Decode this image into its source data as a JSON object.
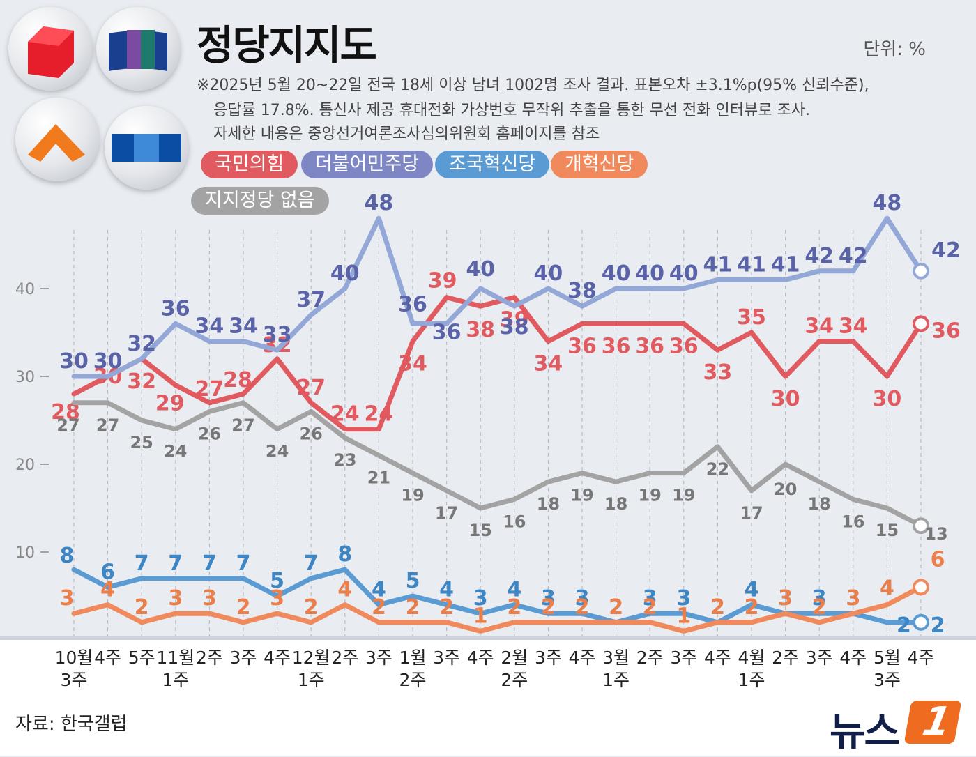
{
  "header": {
    "title": "정당지지도",
    "unit": "단위: %",
    "notes": [
      "※2025년 5월 20~22일 전국 18세 이상 남녀 1002명 조사 결과. 표본오차 ±3.1%p(95% 신뢰수준),",
      "응답률 17.8%. 통신사 제공 휴대전화 가상번호 무작위 추출을 통한 무선 전화 인터뷰로 조사.",
      "자세한 내용은 중앙선거여론조사심의위원회 홈페이지를 참조"
    ]
  },
  "logos": [
    {
      "icon": "ppp-party-logo-icon",
      "color": "#e61e2b"
    },
    {
      "icon": "democratic-party-logo-icon",
      "color": "#1b3f8f"
    },
    {
      "icon": "reform-party-logo-icon",
      "color": "#f07a1c"
    },
    {
      "icon": "rebuilding-korea-party-logo-icon",
      "color": "#0a4ea3"
    }
  ],
  "source": "자료: 한국갤럽",
  "brand": {
    "text": "뉴스",
    "mark": "1"
  },
  "chart_data": {
    "type": "line",
    "ylim": [
      0,
      50
    ],
    "yticks": [
      10,
      20,
      30,
      40
    ],
    "x": [
      "10월 3주",
      "4주",
      "5주",
      "11월 1주",
      "2주",
      "3주",
      "4주",
      "12월 1주",
      "2주",
      "3주",
      "1월 2주",
      "3주",
      "4주",
      "2월 2주",
      "3주",
      "4주",
      "3월 1주",
      "2주",
      "3주",
      "4주",
      "4월 1주",
      "2주",
      "3주",
      "4주",
      "5월 3주",
      "4주"
    ],
    "x_labels": [
      [
        "10월",
        "3주"
      ],
      [
        "4주"
      ],
      [
        "5주"
      ],
      [
        "11월",
        "1주"
      ],
      [
        "2주"
      ],
      [
        "3주"
      ],
      [
        "4주"
      ],
      [
        "12월",
        "1주"
      ],
      [
        "2주"
      ],
      [
        "3주"
      ],
      [
        "1월",
        "2주"
      ],
      [
        "3주"
      ],
      [
        "4주"
      ],
      [
        "2월",
        "2주"
      ],
      [
        "3주"
      ],
      [
        "4주"
      ],
      [
        "3월",
        "1주"
      ],
      [
        "2주"
      ],
      [
        "3주"
      ],
      [
        "4주"
      ],
      [
        "4월",
        "1주"
      ],
      [
        "2주"
      ],
      [
        "3주"
      ],
      [
        "4주"
      ],
      [
        "5월",
        "3주"
      ],
      [
        "4주"
      ]
    ],
    "series": [
      {
        "name": "국민의힘",
        "color": "#e05a5f",
        "values": [
          28,
          30,
          32,
          29,
          27,
          28,
          32,
          27,
          24,
          24,
          34,
          39,
          38,
          39,
          34,
          36,
          36,
          36,
          36,
          33,
          35,
          30,
          34,
          34,
          30,
          36
        ]
      },
      {
        "name": "더불어민주당",
        "color": "#94a8d8",
        "label_color": "#5a63a8",
        "values": [
          30,
          30,
          32,
          36,
          34,
          34,
          33,
          37,
          40,
          48,
          36,
          36,
          40,
          38,
          40,
          38,
          40,
          40,
          40,
          41,
          41,
          41,
          42,
          42,
          48,
          42
        ]
      },
      {
        "name": "조국혁신당",
        "color": "#5b9bd3",
        "label_color": "#3d86c6",
        "values": [
          8,
          6,
          7,
          7,
          7,
          7,
          5,
          7,
          8,
          4,
          5,
          4,
          3,
          4,
          3,
          3,
          2,
          3,
          3,
          2,
          4,
          3,
          3,
          3,
          2,
          2
        ]
      },
      {
        "name": "개혁신당",
        "color": "#f08a5d",
        "label_color": "#ec7e4a",
        "values": [
          3,
          4,
          2,
          3,
          3,
          2,
          3,
          2,
          4,
          2,
          2,
          2,
          1,
          2,
          2,
          2,
          2,
          2,
          1,
          2,
          2,
          3,
          2,
          3,
          4,
          6
        ]
      },
      {
        "name": "지지정당 없음",
        "color": "#a3a3a3",
        "label_color": "#777777",
        "values": [
          27,
          27,
          25,
          24,
          26,
          27,
          24,
          26,
          23,
          21,
          19,
          17,
          15,
          16,
          18,
          19,
          18,
          19,
          19,
          22,
          17,
          20,
          18,
          16,
          15,
          13
        ]
      }
    ]
  }
}
